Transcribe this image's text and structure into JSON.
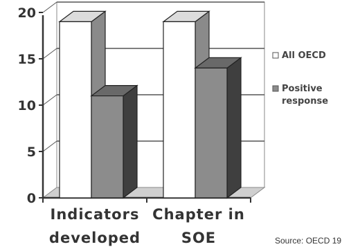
{
  "chart_data": {
    "type": "bar",
    "categories": [
      [
        "Indicators",
        "developed"
      ],
      [
        "Chapter in",
        "SOE"
      ]
    ],
    "series": [
      {
        "name": "All OECD",
        "values": [
          19,
          19
        ],
        "color": "#ffffff"
      },
      {
        "name": [
          "Positive",
          "response"
        ],
        "values": [
          11,
          14
        ],
        "color": "#8c8c8c"
      }
    ],
    "yticks": [
      0,
      5,
      10,
      15,
      20
    ],
    "ylim": [
      0,
      20
    ],
    "grid": true,
    "legend_position": "right",
    "style": "3d-bars"
  },
  "source_note": "Source: OECD 19"
}
